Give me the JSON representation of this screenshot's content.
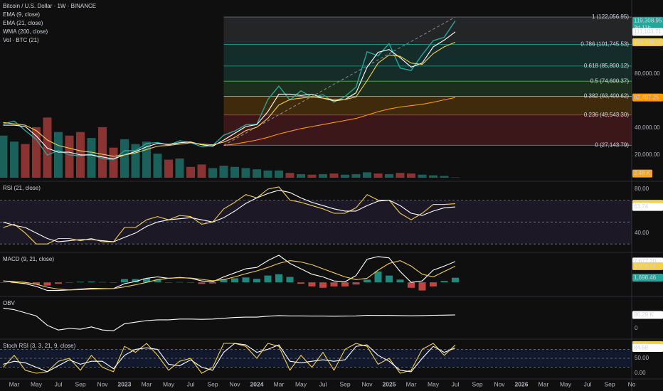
{
  "chart_data": [
    {
      "type": "line",
      "title": "Bitcoin / U.S. Dollar · 1W · BINANCE",
      "x": [
        "2022-02",
        "2022-03",
        "2022-04",
        "2022-05",
        "2022-06",
        "2022-07",
        "2022-08",
        "2022-09",
        "2022-10",
        "2022-11",
        "2022-12",
        "2023-01",
        "2023-02",
        "2023-03",
        "2023-04",
        "2023-05",
        "2023-06",
        "2023-07",
        "2023-08",
        "2023-09",
        "2023-10",
        "2023-11",
        "2023-12",
        "2024-01",
        "2024-02",
        "2024-03",
        "2024-04",
        "2024-05",
        "2024-06",
        "2024-07",
        "2024-08",
        "2024-09",
        "2024-10",
        "2024-11",
        "2024-12",
        "2025-01",
        "2025-02",
        "2025-03",
        "2025-04",
        "2025-05",
        "2025-06",
        "2025-07"
      ],
      "xticks": [
        {
          "value": "2022-03",
          "label": "Mar"
        },
        {
          "value": "2022-05",
          "label": "May"
        },
        {
          "value": "2022-07",
          "label": "Jul"
        },
        {
          "value": "2022-09",
          "label": "Sep"
        },
        {
          "value": "2022-11",
          "label": "Nov"
        },
        {
          "value": "2023-01",
          "label": "2023"
        },
        {
          "value": "2023-03",
          "label": "Mar"
        },
        {
          "value": "2023-05",
          "label": "May"
        },
        {
          "value": "2023-07",
          "label": "Jul"
        },
        {
          "value": "2023-09",
          "label": "Sep"
        },
        {
          "value": "2023-11",
          "label": "Nov"
        },
        {
          "value": "2024-01",
          "label": "2024"
        },
        {
          "value": "2024-03",
          "label": "Mar"
        },
        {
          "value": "2024-05",
          "label": "May"
        },
        {
          "value": "2024-07",
          "label": "Jul"
        },
        {
          "value": "2024-09",
          "label": "Sep"
        },
        {
          "value": "2024-11",
          "label": "Nov"
        },
        {
          "value": "2025-01",
          "label": "2025"
        },
        {
          "value": "2025-03",
          "label": "Mar"
        },
        {
          "value": "2025-05",
          "label": "May"
        },
        {
          "value": "2025-07",
          "label": "Jul"
        },
        {
          "value": "2025-09",
          "label": "Sep"
        },
        {
          "value": "2025-11",
          "label": "Nov"
        },
        {
          "value": "2026-01",
          "label": "2026"
        },
        {
          "value": "2026-03",
          "label": "Mar"
        },
        {
          "value": "2026-05",
          "label": "May"
        },
        {
          "value": "2026-07",
          "label": "Jul"
        },
        {
          "value": "2026-09",
          "label": "Sep"
        },
        {
          "value": "2026-11",
          "label": "No"
        }
      ],
      "ylim": [
        1000,
        134700
      ],
      "yticks": [
        {
          "value": 20000,
          "label": "20,000.00"
        },
        {
          "value": 40000,
          "label": "40,000.00"
        },
        {
          "value": 80000,
          "label": "80,000.00"
        }
      ],
      "series": [
        {
          "color": "#26a69a",
          "last_label": "119,308.95",
          "countdown": "3d 11h",
          "values": [
            43000,
            45000,
            38000,
            31500,
            19900,
            23300,
            20000,
            19400,
            20500,
            17200,
            16500,
            23100,
            23100,
            28500,
            29200,
            27200,
            30500,
            29200,
            26000,
            27000,
            34600,
            37700,
            42300,
            42600,
            61000,
            71000,
            60600,
            67500,
            62700,
            64600,
            59000,
            63300,
            70200,
            96400,
            93400,
            102400,
            84300,
            82500,
            94200,
            104600,
            107100,
            119308.95
          ]
        },
        {
          "name": "EMA (9, close)",
          "color": "#ffffff",
          "last_label": "111,103.71",
          "values": [
            42000,
            42000,
            41000,
            34000,
            25000,
            22000,
            22000,
            20000,
            20000,
            18500,
            17000,
            20000,
            22500,
            26000,
            28500,
            27800,
            29000,
            29600,
            27500,
            26500,
            31000,
            36000,
            41000,
            42500,
            52000,
            65000,
            65000,
            64000,
            65000,
            62000,
            60000,
            61000,
            66000,
            85000,
            96000,
            98000,
            92000,
            85000,
            88000,
            100000,
            105000,
            111103.71
          ]
        },
        {
          "name": "EMA (21, close)",
          "color": "#f5d04a",
          "last_label": "103,426.50",
          "values": [
            44000,
            43000,
            42000,
            38000,
            31000,
            27000,
            25000,
            23000,
            22000,
            20500,
            19000,
            20000,
            21500,
            24000,
            26500,
            27000,
            28000,
            29000,
            28000,
            27500,
            29500,
            33000,
            38000,
            40500,
            47000,
            57000,
            61000,
            62000,
            63000,
            62000,
            61000,
            61000,
            63000,
            75000,
            88000,
            94000,
            93000,
            88000,
            87000,
            95000,
            100000,
            103426.5
          ]
        },
        {
          "name": "WMA (200, close)",
          "color": "#ff9800",
          "last_label": "62,497.25",
          "values": [
            null,
            null,
            null,
            null,
            null,
            null,
            null,
            null,
            null,
            null,
            null,
            null,
            null,
            null,
            null,
            null,
            null,
            null,
            null,
            null,
            27000,
            28000,
            29500,
            31000,
            33000,
            35500,
            37500,
            39500,
            41000,
            42500,
            44000,
            45500,
            47000,
            49500,
            52000,
            54000,
            55500,
            56500,
            57500,
            59000,
            60800,
            62497.25
          ]
        }
      ],
      "volume": {
        "name": "Vol · BTC (21)",
        "ylim": [
          0,
          1500
        ],
        "up_color": "#26a69a",
        "down_color": "#ef5350",
        "last_label": "2.48 K",
        "values": [
          350,
          300,
          280,
          420,
          500,
          380,
          350,
          380,
          330,
          420,
          250,
          320,
          280,
          300,
          200,
          150,
          160,
          90,
          110,
          80,
          100,
          90,
          80,
          70,
          60,
          60,
          40,
          30,
          25,
          30,
          35,
          25,
          30,
          45,
          35,
          30,
          40,
          35,
          25,
          20,
          15,
          2.48
        ]
      },
      "fib": {
        "start": "2023-10",
        "levels": [
          {
            "value": 122056.95,
            "label": "1 (122,056.95)",
            "color": "#787b86"
          },
          {
            "value": 101745.53,
            "label": "0.786 (101,745.53)",
            "color": "#26a69a"
          },
          {
            "value": 85800.12,
            "label": "0.618 (85,800.12)",
            "color": "#2f9e92"
          },
          {
            "value": 74600.37,
            "label": "0.5 (74,600.37)",
            "color": "#4caf50"
          },
          {
            "value": 63400.62,
            "label": "0.382 (63,400.62)",
            "color": "#ff9800"
          },
          {
            "value": 49543.3,
            "label": "0.236 (49,543.30)",
            "color": "#f23645"
          },
          {
            "value": 27143.79,
            "label": "0 (27,143.79)",
            "color": "#787b86"
          }
        ]
      }
    },
    {
      "type": "line",
      "title": "RSI (21, close)",
      "ylim": [
        23,
        86.5
      ],
      "yticks": [
        {
          "value": 80,
          "label": "80.00"
        },
        {
          "value": 40,
          "label": "40.00"
        }
      ],
      "band": [
        30,
        70
      ],
      "band_color": "#7e57c2",
      "hlines": [
        70,
        50,
        30
      ],
      "series": [
        {
          "color": "#f5d04a",
          "last_label": "66.69",
          "values": [
            45,
            48,
            40,
            30,
            30,
            35,
            35,
            33,
            35,
            32,
            32,
            45,
            45,
            52,
            55,
            52,
            56,
            55,
            48,
            50,
            62,
            68,
            75,
            72,
            80,
            82,
            70,
            68,
            65,
            62,
            58,
            58,
            63,
            75,
            70,
            70,
            58,
            52,
            58,
            66,
            66,
            66.69
          ]
        },
        {
          "color": "#ffffff",
          "last_label": "63.74",
          "values": [
            50,
            47,
            45,
            40,
            35,
            32,
            33,
            34,
            34,
            33,
            32,
            36,
            40,
            46,
            50,
            52,
            53,
            54,
            52,
            50,
            54,
            60,
            67,
            72,
            76,
            79,
            77,
            72,
            68,
            65,
            62,
            60,
            60,
            65,
            69,
            70,
            65,
            58,
            56,
            60,
            63,
            63.74
          ]
        }
      ]
    },
    {
      "type": "macd",
      "title": "MACD (9, 21, close)",
      "ylim": [
        -4940,
        10790
      ],
      "yticks": [],
      "histogram": {
        "up_color": "#26a69a",
        "down_color": "#ef5350",
        "last_label": "1,698.46",
        "values": [
          0,
          -300,
          -500,
          -800,
          -1200,
          -500,
          0,
          200,
          300,
          100,
          0,
          1200,
          1200,
          1500,
          1000,
          0,
          100,
          -100,
          -600,
          -400,
          1000,
          1500,
          1800,
          1300,
          2500,
          3000,
          2000,
          -500,
          -1500,
          -2000,
          -1500,
          -1500,
          -800,
          1000,
          4000,
          2500,
          1000,
          -2000,
          -3000,
          -1500,
          500,
          1698.46
        ]
      },
      "series": [
        {
          "color": "#ffffff",
          "last_label": "7,677.20",
          "values": [
            500,
            0,
            -500,
            -1500,
            -3000,
            -3000,
            -2800,
            -2500,
            -2200,
            -2300,
            -2300,
            -500,
            300,
            1500,
            2000,
            1500,
            1800,
            1500,
            500,
            200,
            2000,
            3500,
            5000,
            5500,
            8000,
            10000,
            7000,
            5000,
            3000,
            2000,
            500,
            200,
            2500,
            8500,
            9500,
            9000,
            4000,
            0,
            500,
            4500,
            6000,
            7677.2
          ]
        },
        {
          "color": "#f5d04a",
          "last_label": "5,978.74",
          "values": [
            500,
            300,
            0,
            -700,
            -1800,
            -2500,
            -2800,
            -2700,
            -2500,
            -2400,
            -2300,
            -1700,
            -900,
            0,
            1000,
            1500,
            1700,
            1600,
            1100,
            600,
            1000,
            2000,
            3200,
            4200,
            5500,
            7000,
            8000,
            7500,
            6500,
            5000,
            3500,
            2000,
            1000,
            1500,
            4500,
            7000,
            8000,
            6000,
            3000,
            2000,
            4000,
            5978.74
          ]
        }
      ]
    },
    {
      "type": "line",
      "title": "OBV",
      "ylim": [
        -63.6,
        199.8
      ],
      "yticks": [
        0
      ],
      "series": [
        {
          "color": "#ffffff",
          "last_label": "86.29 K",
          "values": [
            130,
            120,
            100,
            80,
            20,
            -10,
            0,
            -5,
            10,
            -10,
            -15,
            30,
            40,
            50,
            55,
            55,
            60,
            60,
            58,
            60,
            65,
            70,
            72,
            72,
            78,
            82,
            80,
            80,
            79,
            79,
            78,
            79,
            80,
            84,
            83,
            83,
            82,
            81,
            82,
            84,
            85,
            86.29
          ]
        }
      ]
    },
    {
      "type": "line",
      "title": "Stoch RSI (3, 3, 21, 9, close)",
      "ylim": [
        -16.7,
        111.9
      ],
      "yticks": [
        {
          "value": 50,
          "label": "50.00"
        },
        {
          "value": 0,
          "label": "0.00"
        }
      ],
      "band": [
        20,
        80
      ],
      "band_color": "#2962ff",
      "hlines": [
        80,
        50,
        20
      ],
      "series": [
        {
          "color": "#f5d04a",
          "last_label": "94.46",
          "values": [
            20,
            60,
            10,
            0,
            5,
            40,
            50,
            10,
            60,
            20,
            5,
            90,
            70,
            100,
            60,
            10,
            40,
            50,
            0,
            20,
            100,
            100,
            90,
            50,
            100,
            90,
            10,
            60,
            20,
            70,
            10,
            80,
            100,
            90,
            30,
            50,
            0,
            10,
            80,
            100,
            60,
            94.46
          ]
        },
        {
          "color": "#ffffff",
          "last_label": "84.58",
          "values": [
            30,
            40,
            35,
            20,
            5,
            25,
            45,
            30,
            40,
            40,
            15,
            60,
            80,
            85,
            80,
            30,
            25,
            45,
            20,
            10,
            70,
            100,
            95,
            70,
            80,
            95,
            40,
            35,
            40,
            45,
            40,
            45,
            90,
            95,
            60,
            40,
            10,
            5,
            50,
            90,
            70,
            84.58
          ]
        }
      ]
    }
  ]
}
